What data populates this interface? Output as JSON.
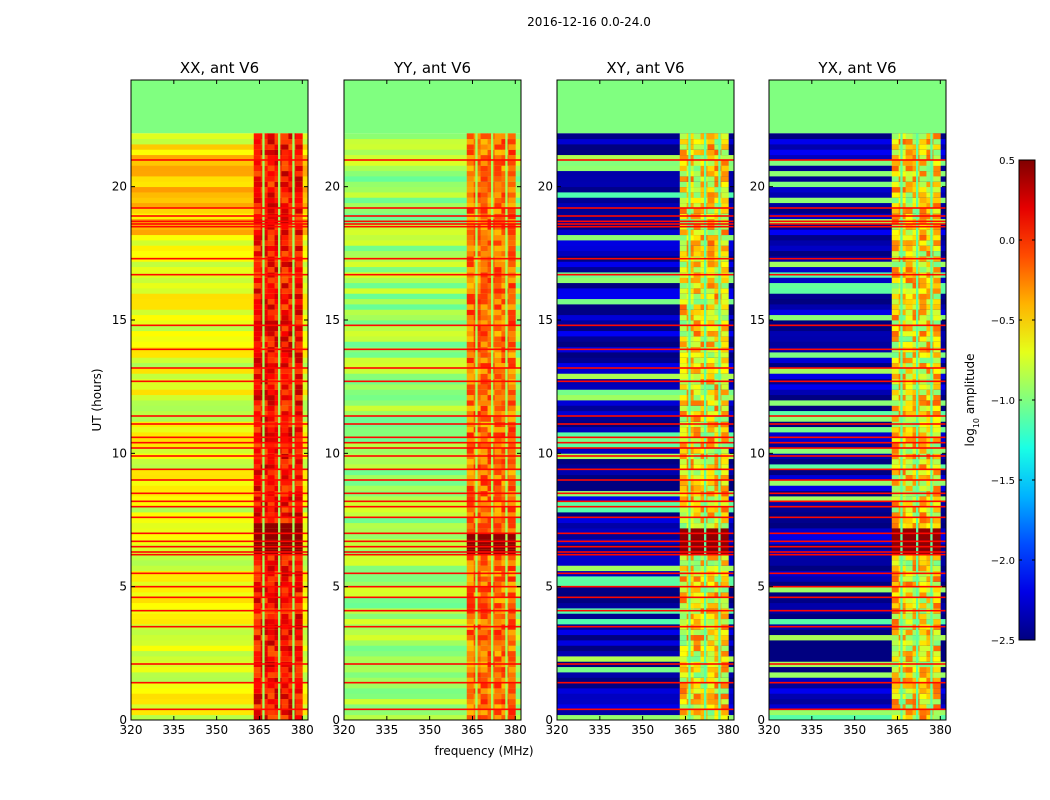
{
  "figure_title": "2016-12-16 0.0-24.0",
  "xlabel": "frequency (MHz)",
  "ylabel": "UT (hours)",
  "colorbar": {
    "label_prefix": "log",
    "label_sub": "10",
    "label_suffix": " amplitude",
    "min": -2.5,
    "max": 0.5,
    "ticks": [
      -2.5,
      -2.0,
      -1.5,
      -1.0,
      -0.5,
      0.0,
      0.5
    ],
    "tick_labels": [
      "−2.5",
      "−2.0",
      "−1.5",
      "−1.0",
      "−0.5",
      "0.0",
      "0.5"
    ]
  },
  "chart_data": {
    "type": "heatmap",
    "colormap": "jet",
    "title": "2016-12-16 0.0-24.0",
    "xlabel": "frequency (MHz)",
    "ylabel": "UT (hours)",
    "xlim": [
      320,
      382
    ],
    "ylim": [
      0,
      24
    ],
    "x_ticks": [
      320,
      335,
      350,
      365,
      380
    ],
    "y_ticks": [
      0,
      5,
      10,
      15,
      20
    ],
    "no_data_above_hours": 22.0,
    "no_data_value": -1.0,
    "rfi_band_mhz": [
      363,
      380
    ],
    "rfi_gaps_mhz": [
      [
        366.0,
        366.8
      ],
      [
        371.5,
        372.3
      ],
      [
        376.5,
        377.3
      ]
    ],
    "flagged_time_rows_hours": [
      0.4,
      1.4,
      2.1,
      3.5,
      4.1,
      4.6,
      5.0,
      5.5,
      6.2,
      6.3,
      6.5,
      6.7,
      7.0,
      7.6,
      8.0,
      8.2,
      8.5,
      9.0,
      9.4,
      9.9,
      10.2,
      10.4,
      10.6,
      11.1,
      11.4,
      12.7,
      13.2,
      13.9,
      14.8,
      16.7,
      17.3,
      18.5,
      18.6,
      18.7,
      18.9,
      19.2,
      21.0
    ],
    "panels": [
      {
        "title": "XX, ant V6",
        "polarization": "XX",
        "antenna": "V6",
        "kind": "auto",
        "background_log10_amp": -0.7,
        "rfi_log10_amp": 0.1,
        "hot_rows_hours": [
          6.2,
          6.4,
          6.6,
          6.8,
          7.0,
          7.2
        ]
      },
      {
        "title": "YY, ant V6",
        "polarization": "YY",
        "antenna": "V6",
        "kind": "auto",
        "background_log10_amp": -0.9,
        "rfi_log10_amp": -0.2,
        "hot_rows_hours": [
          6.3,
          6.5,
          6.7
        ]
      },
      {
        "title": "XY, ant V6",
        "polarization": "XY",
        "antenna": "V6",
        "kind": "cross",
        "background_log10_amp": -2.4,
        "rfi_log10_amp": -0.6,
        "hot_rows_hours": [
          6.3,
          6.5,
          6.7,
          6.9
        ]
      },
      {
        "title": "YX, ant V6",
        "polarization": "YX",
        "antenna": "V6",
        "kind": "cross",
        "background_log10_amp": -2.4,
        "rfi_log10_amp": -0.6,
        "hot_rows_hours": [
          6.3,
          6.5,
          6.7,
          6.9
        ]
      }
    ]
  }
}
